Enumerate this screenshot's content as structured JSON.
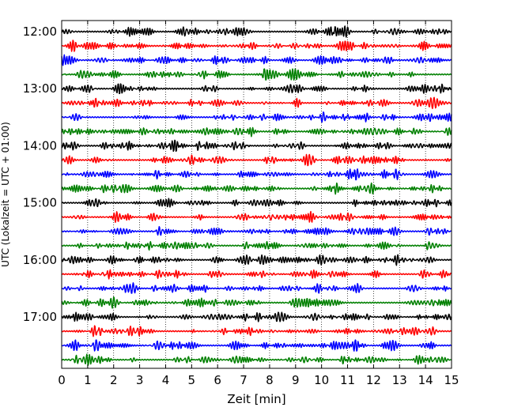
{
  "chart_data": {
    "type": "line",
    "title": "",
    "xlabel": "Zeit  [min]",
    "ylabel": "UTC (Lokalzeit = UTC + 01:00)",
    "xlim": [
      0,
      15
    ],
    "x_ticks": [
      "0",
      "1",
      "2",
      "3",
      "4",
      "5",
      "6",
      "7",
      "8",
      "9",
      "10",
      "11",
      "12",
      "13",
      "14",
      "15"
    ],
    "y_ticks": [
      "12:00",
      "13:00",
      "14:00",
      "15:00",
      "16:00",
      "17:00"
    ],
    "trace_interval_min": 15,
    "trace_count": 24,
    "trace_colors": [
      "#000000",
      "#ff0000",
      "#0000ff",
      "#008000"
    ],
    "grid": "vertical dotted",
    "legend": "none"
  }
}
